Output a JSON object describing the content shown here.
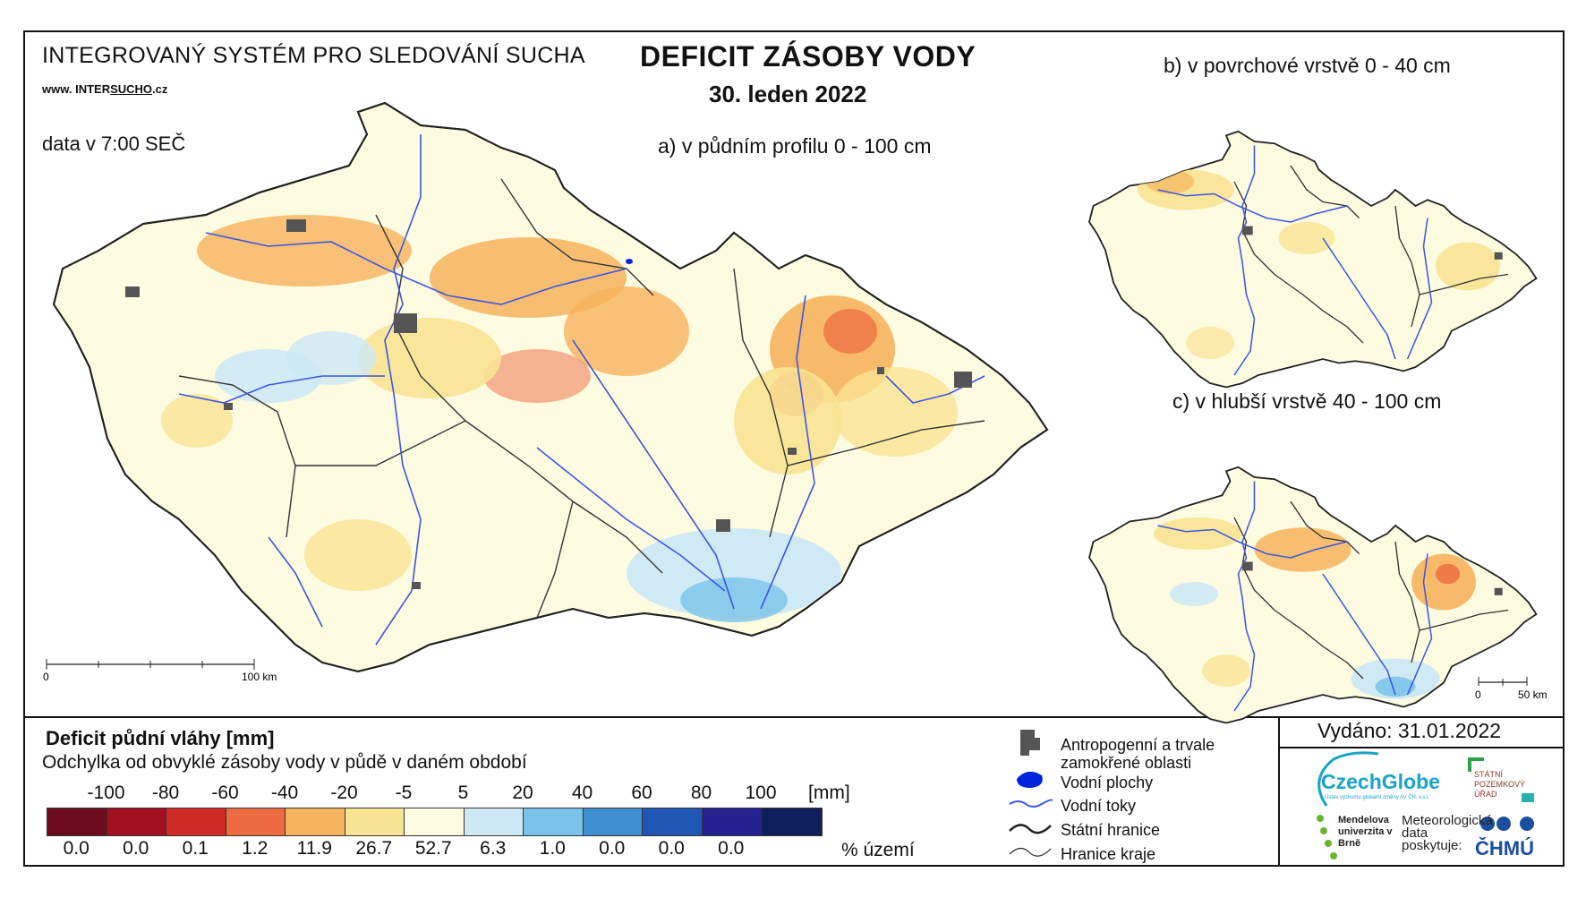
{
  "header": {
    "system_title": "INTEGROVANÝ SYSTÉM PRO SLEDOVÁNÍ SUCHA",
    "website_prefix": "www. INTER",
    "website_underlined": "SUCHO",
    "website_suffix": ".cz",
    "data_time": "data v 7:00 SEČ",
    "main_title": "DEFICIT ZÁSOBY VODY",
    "main_date": "30. leden 2022"
  },
  "panels": {
    "a_label": "a) v půdním profilu 0 - 100 cm",
    "b_label": "b) v povrchové vrstvě 0 - 40 cm",
    "c_label": "c) v hlubší vrstvě 40 - 100 cm",
    "a_scale": {
      "start": "0",
      "end": "100 km"
    },
    "c_scale": {
      "start": "0",
      "end": "50 km"
    }
  },
  "legend": {
    "title": "Deficit půdní vláhy  [mm]",
    "subtitle": "Odchylka od obvyklé zásoby vody v půdě v daném období",
    "ticks": [
      "-100",
      "-80",
      "-60",
      "-40",
      "-20",
      "-5",
      "5",
      "20",
      "40",
      "60",
      "80",
      "100"
    ],
    "unit_mm": "[mm]",
    "colors": [
      "#6b0d1c",
      "#a01020",
      "#d12b28",
      "#ee6a40",
      "#f6b35d",
      "#f9e394",
      "#fdfbe0",
      "#cde9f6",
      "#79c3ea",
      "#3f8fd2",
      "#1f55b3",
      "#23208f",
      "#0e1f5c"
    ],
    "percentages": [
      "0.0",
      "0.0",
      "0.1",
      "1.2",
      "11.9",
      "26.7",
      "52.7",
      "6.3",
      "1.0",
      "0.0",
      "0.0",
      "0.0"
    ],
    "percent_unit": "% území"
  },
  "symbols": {
    "anthropogenic": "Antropogenní a trvale zamokřené oblasti",
    "water_bodies": "Vodní plochy",
    "rivers": "Vodní toky",
    "state_border": "Státní hranice",
    "region_border": "Hranice kraje"
  },
  "footer": {
    "issued": "Vydáno: 31.01.2022",
    "czechglobe": "CzechGlobe",
    "czechglobe_sub": "Ústav výzkumu globální změny AV ČR, v.v.i.",
    "spu": "STÁTNÍ POZEMKOVÝ ÚŘAD",
    "mendel": "Mendelova univerzita v Brně",
    "meteo": "Meteorologická data poskytuje:",
    "chmu": "ČHMÚ"
  }
}
